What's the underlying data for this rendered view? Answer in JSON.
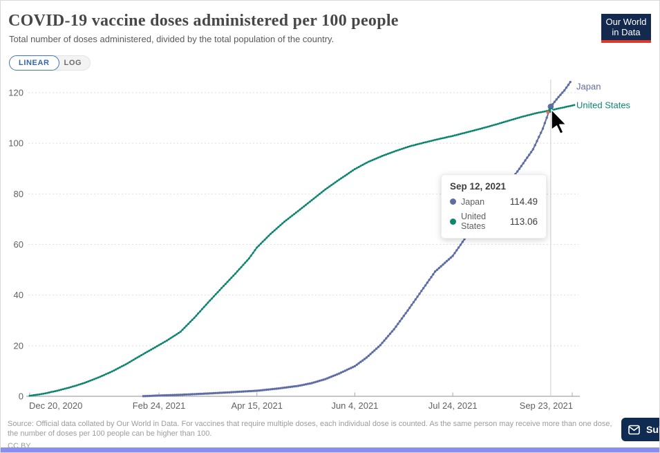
{
  "header": {
    "title": "COVID-19 vaccine doses administered per 100 people",
    "subtitle": "Total number of doses administered, divided by the total population of the country."
  },
  "logo": {
    "line1": "Our World",
    "line2": "in Data"
  },
  "controls": {
    "scale_options": [
      {
        "label": "LINEAR",
        "active": true
      },
      {
        "label": "LOG",
        "active": false
      }
    ]
  },
  "chart_data": {
    "type": "line",
    "title": "COVID-19 vaccine doses administered per 100 people",
    "xlabel": "",
    "ylabel": "",
    "x_axis": {
      "tick_labels": [
        "Dec 20, 2020",
        "Feb 24, 2021",
        "Apr 15, 2021",
        "Jun 4, 2021",
        "Jul 24, 2021",
        "Sep 23, 2021"
      ],
      "tick_days_since_start": [
        0,
        66,
        116,
        166,
        216,
        277
      ],
      "start_date": "Dec 20, 2020"
    },
    "y_axis": {
      "ticks": [
        0,
        20,
        40,
        60,
        80,
        100,
        120
      ],
      "range": [
        0,
        126
      ],
      "gridlines": "dashed"
    },
    "legend_position": "end-of-line",
    "series": [
      {
        "name": "Japan",
        "color": "#5e6da4",
        "points_day_value": [
          [
            58,
            0.05
          ],
          [
            66,
            0.3
          ],
          [
            77,
            0.6
          ],
          [
            91,
            1.1
          ],
          [
            105,
            1.7
          ],
          [
            116,
            2.2
          ],
          [
            126,
            3.0
          ],
          [
            137,
            4.1
          ],
          [
            144,
            5.2
          ],
          [
            151,
            6.8
          ],
          [
            158,
            9.0
          ],
          [
            166,
            11.9
          ],
          [
            172,
            15.3
          ],
          [
            179,
            20.2
          ],
          [
            186,
            26.5
          ],
          [
            193,
            33.9
          ],
          [
            200,
            41.6
          ],
          [
            207,
            49.3
          ],
          [
            216,
            55.5
          ],
          [
            222,
            62.1
          ],
          [
            229,
            68.9
          ],
          [
            236,
            75.7
          ],
          [
            243,
            82.6
          ],
          [
            250,
            89.9
          ],
          [
            257,
            97.6
          ],
          [
            262,
            105.8
          ],
          [
            266,
            114.49
          ],
          [
            270,
            118.3
          ],
          [
            273,
            120.9
          ],
          [
            276,
            124.2
          ]
        ]
      },
      {
        "name": "United States",
        "color": "#0f8570",
        "points_day_value": [
          [
            0,
            0.2
          ],
          [
            7,
            1.0
          ],
          [
            14,
            2.2
          ],
          [
            21,
            3.6
          ],
          [
            28,
            5.3
          ],
          [
            35,
            7.4
          ],
          [
            42,
            9.8
          ],
          [
            49,
            12.6
          ],
          [
            56,
            15.8
          ],
          [
            63,
            18.9
          ],
          [
            70,
            22.0
          ],
          [
            77,
            25.5
          ],
          [
            84,
            31.0
          ],
          [
            91,
            37.0
          ],
          [
            98,
            42.8
          ],
          [
            105,
            48.5
          ],
          [
            112,
            54.5
          ],
          [
            116,
            58.8
          ],
          [
            123,
            64.2
          ],
          [
            130,
            69.0
          ],
          [
            137,
            73.2
          ],
          [
            144,
            77.5
          ],
          [
            151,
            81.8
          ],
          [
            158,
            85.6
          ],
          [
            166,
            89.8
          ],
          [
            173,
            92.7
          ],
          [
            180,
            95.0
          ],
          [
            187,
            97.0
          ],
          [
            194,
            98.8
          ],
          [
            201,
            100.2
          ],
          [
            209,
            101.7
          ],
          [
            216,
            102.9
          ],
          [
            223,
            104.3
          ],
          [
            230,
            105.7
          ],
          [
            237,
            107.2
          ],
          [
            244,
            108.8
          ],
          [
            251,
            110.4
          ],
          [
            258,
            111.8
          ],
          [
            266,
            113.06
          ],
          [
            271,
            113.9
          ],
          [
            278,
            115.1
          ]
        ]
      }
    ],
    "hover": {
      "day": 266,
      "date_label": "Sep 12, 2021",
      "values": [
        {
          "name": "Japan",
          "value": "114.49"
        },
        {
          "name": "United States",
          "value": "113.06"
        }
      ]
    }
  },
  "footer": {
    "source_line1": "Source: Official data collated by Our World in Data. For vaccines that require multiple doses, each individual dose is counted. As the same person may receive more than one dose,",
    "source_line2": "the number of doses per 100 people can be higher than 100.",
    "license": "CC BY"
  },
  "subscribe": {
    "label": "Sub"
  },
  "colors": {
    "accent_red": "#dc3a2c",
    "logo_navy": "#13294e",
    "crosshair": "#cbcbcb",
    "grid": "#dedede",
    "cursor_highlight_dot": "#e0695f",
    "bottom_bar": "#8b8ef0"
  }
}
